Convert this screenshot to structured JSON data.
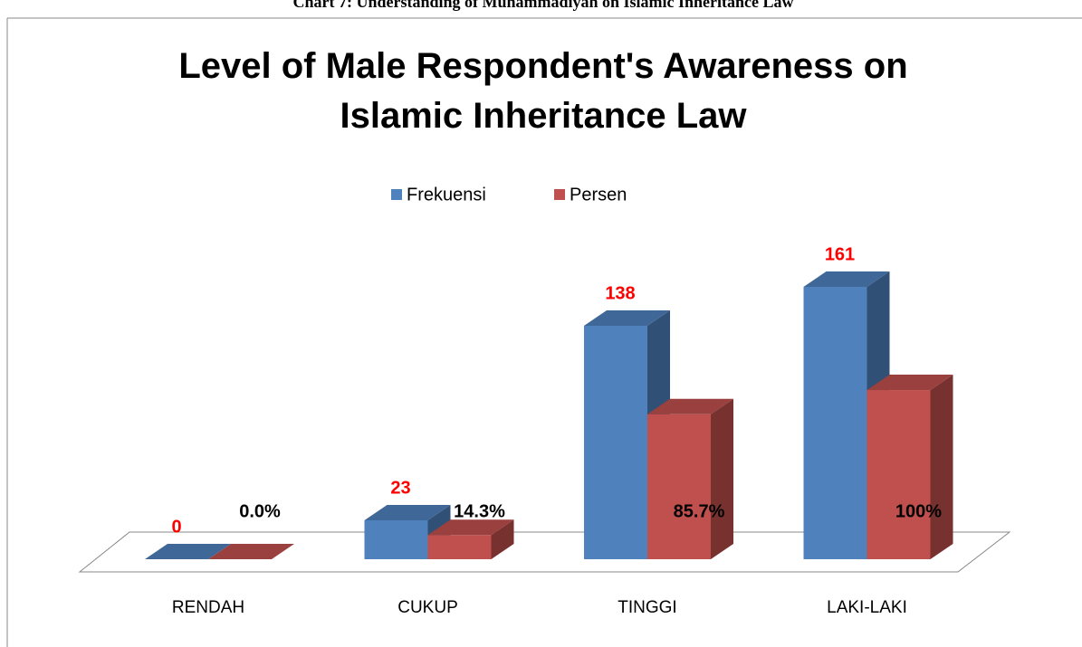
{
  "caption": "Chart 7: Understanding of Muhammadiyah on Islamic Inheritance Law",
  "chart_data": {
    "type": "bar3d",
    "title": "Level of Male Respondent's Awareness on Islamic Inheritance Law",
    "categories": [
      "RENDAH",
      "CUKUP",
      "TINGGI",
      "LAKI-LAKI"
    ],
    "series": [
      {
        "name": "Frekuensi",
        "color": "#4f81bd",
        "values": [
          0,
          23,
          138,
          161
        ]
      },
      {
        "name": "Persen",
        "color": "#c0504d",
        "values": [
          0,
          14.3,
          85.7,
          100
        ],
        "value_labels": [
          "0.0%",
          "14.3%",
          "85.7%",
          "100%"
        ]
      }
    ],
    "legend": "top"
  }
}
